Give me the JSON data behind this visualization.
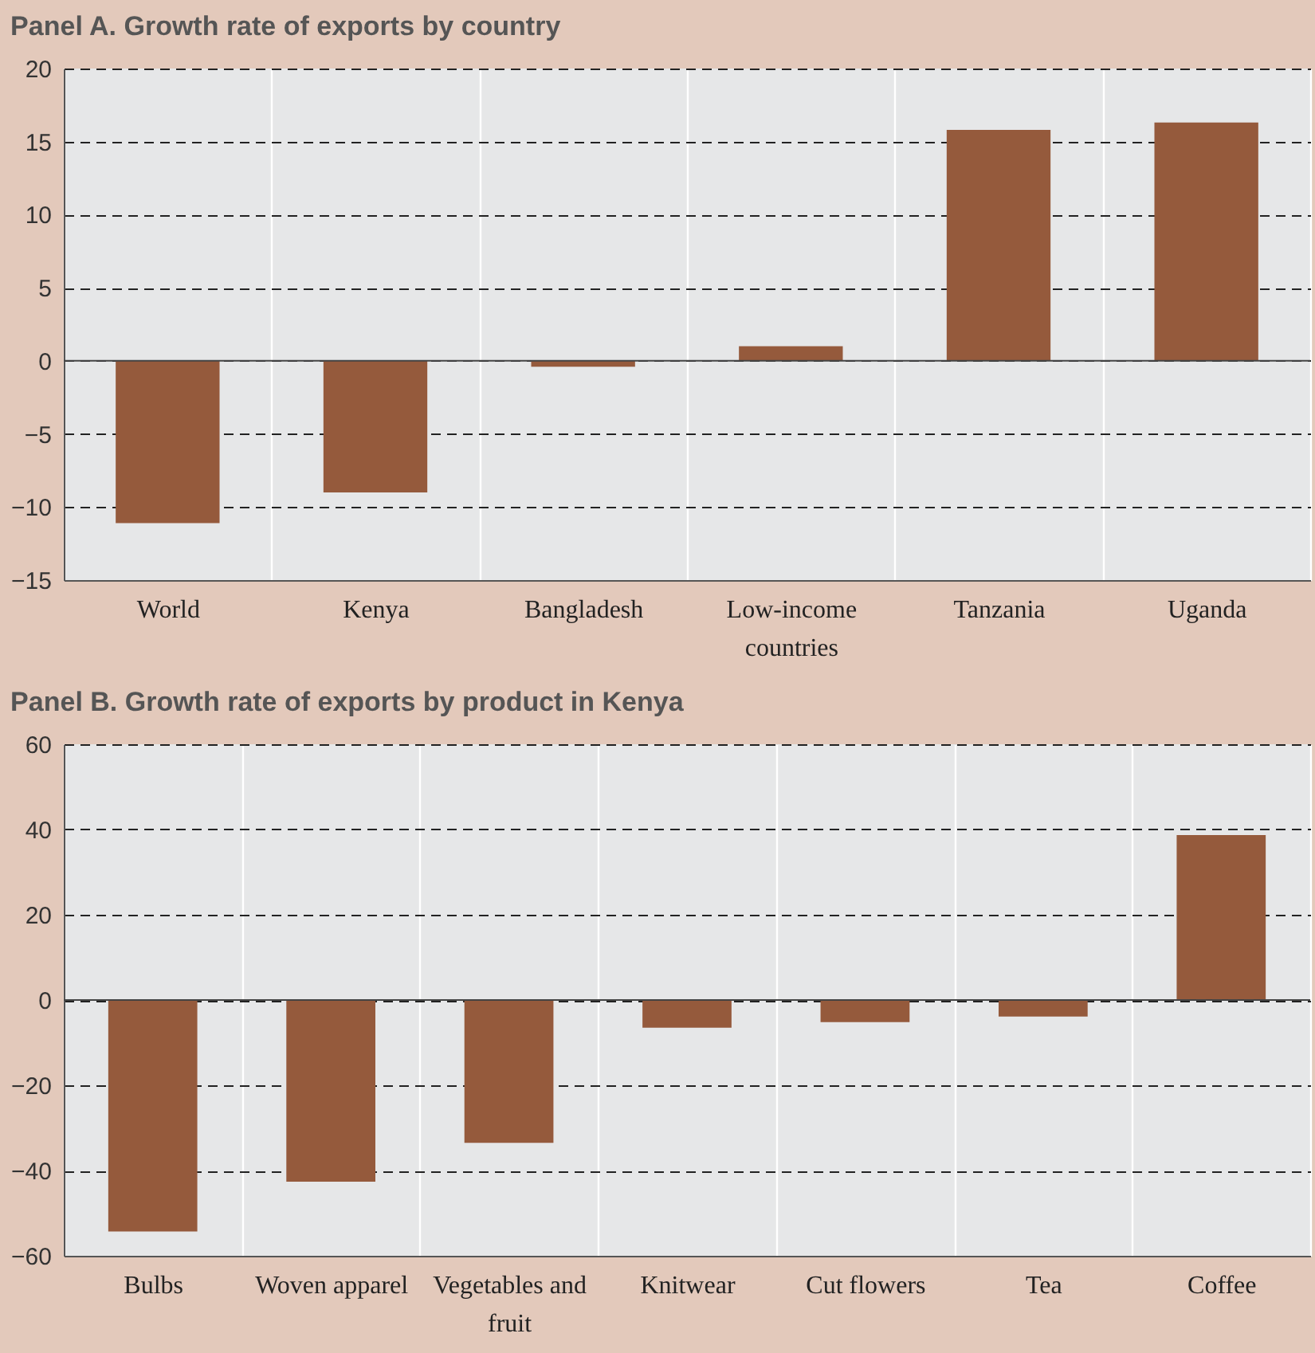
{
  "chart_data": [
    {
      "type": "bar",
      "title": "Panel A. Growth rate of exports by country",
      "categories": [
        "World",
        "Kenya",
        "Bangladesh",
        "Low-income countries",
        "Tanzania",
        "Uganda"
      ],
      "values": [
        -11.1,
        -9.0,
        -0.4,
        1.0,
        15.8,
        16.3
      ],
      "color": "#955a3c",
      "ylim": [
        -15,
        20
      ],
      "yticks": [
        -15,
        -10,
        -5,
        0,
        5,
        10,
        15,
        20
      ],
      "grid": "y"
    },
    {
      "type": "bar",
      "title": "Panel B. Growth rate of exports by product in Kenya",
      "categories": [
        "Bulbs",
        "Woven apparel",
        "Vegetables and fruit",
        "Knitwear",
        "Cut flowers",
        "Tea",
        "Coffee"
      ],
      "values": [
        -54.3,
        -42.6,
        -33.5,
        -6.5,
        -5.2,
        -3.9,
        38.7
      ],
      "color": "#955a3c",
      "ylim": [
        -60,
        60
      ],
      "yticks": [
        -60,
        -40,
        -20,
        0,
        20,
        40,
        60
      ],
      "grid": "y"
    }
  ]
}
